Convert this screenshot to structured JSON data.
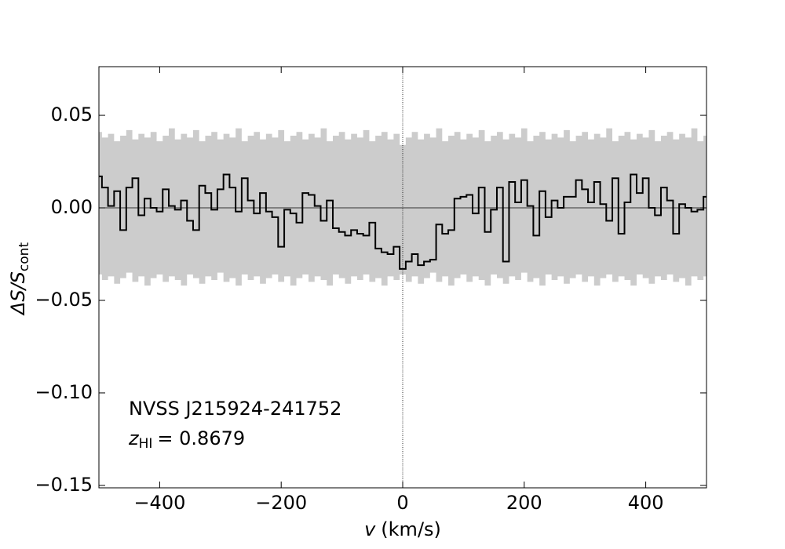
{
  "chart_data": {
    "type": "step",
    "xlabel": {
      "var": "v",
      "unit": "(km/s)"
    },
    "ylabel": {
      "main": "ΔS/S",
      "sub": "cont"
    },
    "annotations": {
      "source": "NVSS J215924-241752",
      "z_var": "z",
      "z_sub": "HI",
      "z_value": "= 0.8679"
    },
    "xlim": [
      -500,
      500
    ],
    "ylim": [
      -0.1513,
      0.0763
    ],
    "xticks": [
      {
        "value": -400,
        "label": "−400"
      },
      {
        "value": -200,
        "label": "−200"
      },
      0,
      200,
      400
    ],
    "yticks": [
      {
        "value": -0.15,
        "label": "−0.15"
      },
      {
        "value": -0.1,
        "label": "−0.10"
      },
      {
        "value": -0.05,
        "label": "−0.05"
      },
      {
        "value": 0,
        "label": "0.00"
      },
      0.05
    ],
    "vline": 0,
    "hline": 0,
    "line_color": "#000000",
    "band_color": "#cccccc",
    "x": [
      -500,
      -490,
      -480,
      -470,
      -460,
      -450,
      -440,
      -430,
      -420,
      -410,
      -400,
      -390,
      -380,
      -370,
      -360,
      -350,
      -340,
      -330,
      -320,
      -310,
      -300,
      -290,
      -280,
      -270,
      -260,
      -250,
      -240,
      -230,
      -220,
      -210,
      -200,
      -190,
      -180,
      -170,
      -160,
      -150,
      -140,
      -130,
      -120,
      -110,
      -100,
      -90,
      -80,
      -70,
      -60,
      -50,
      -40,
      -30,
      -20,
      -10,
      0,
      10,
      20,
      30,
      40,
      50,
      60,
      70,
      80,
      90,
      100,
      110,
      120,
      130,
      140,
      150,
      160,
      170,
      180,
      190,
      200,
      210,
      220,
      230,
      240,
      250,
      260,
      270,
      280,
      290,
      300,
      310,
      320,
      330,
      340,
      350,
      360,
      370,
      380,
      390,
      400,
      410,
      420,
      430,
      440,
      450,
      460,
      470,
      480,
      490,
      500
    ],
    "values": [
      0.017,
      0.011,
      0.001,
      0.009,
      -0.012,
      0.011,
      0.016,
      -0.004,
      0.005,
      0.0,
      -0.002,
      0.01,
      0.001,
      -0.001,
      0.004,
      -0.007,
      -0.012,
      0.012,
      0.008,
      -0.001,
      0.01,
      0.018,
      0.011,
      -0.002,
      0.016,
      0.004,
      -0.003,
      0.008,
      -0.002,
      -0.005,
      -0.021,
      -0.001,
      -0.003,
      -0.008,
      0.008,
      0.007,
      0.001,
      -0.007,
      0.004,
      -0.011,
      -0.013,
      -0.015,
      -0.012,
      -0.014,
      -0.015,
      -0.008,
      -0.022,
      -0.024,
      -0.025,
      -0.021,
      -0.033,
      -0.029,
      -0.025,
      -0.031,
      -0.029,
      -0.028,
      -0.009,
      -0.014,
      -0.012,
      0.005,
      0.006,
      0.007,
      -0.003,
      0.011,
      -0.013,
      -0.001,
      0.011,
      -0.029,
      0.014,
      0.003,
      0.015,
      0.001,
      -0.015,
      0.009,
      -0.005,
      0.004,
      0.0,
      0.006,
      0.006,
      0.015,
      0.01,
      0.003,
      0.014,
      0.002,
      -0.007,
      0.016,
      -0.014,
      0.003,
      0.018,
      0.008,
      0.016,
      0.0,
      -0.004,
      0.011,
      0.004,
      -0.014,
      0.002,
      0.0,
      -0.002,
      -0.001,
      0.006
    ],
    "band_upper": [
      0.041,
      0.038,
      0.04,
      0.036,
      0.039,
      0.042,
      0.037,
      0.04,
      0.038,
      0.041,
      0.036,
      0.039,
      0.043,
      0.037,
      0.04,
      0.038,
      0.042,
      0.036,
      0.039,
      0.041,
      0.037,
      0.04,
      0.038,
      0.043,
      0.036,
      0.039,
      0.041,
      0.037,
      0.04,
      0.038,
      0.042,
      0.036,
      0.039,
      0.041,
      0.037,
      0.04,
      0.038,
      0.043,
      0.036,
      0.039,
      0.041,
      0.037,
      0.04,
      0.038,
      0.042,
      0.036,
      0.039,
      0.041,
      0.037,
      0.04,
      0.034,
      0.038,
      0.041,
      0.037,
      0.04,
      0.038,
      0.043,
      0.036,
      0.039,
      0.041,
      0.037,
      0.04,
      0.038,
      0.042,
      0.036,
      0.039,
      0.041,
      0.037,
      0.04,
      0.038,
      0.043,
      0.036,
      0.039,
      0.041,
      0.037,
      0.04,
      0.038,
      0.042,
      0.036,
      0.039,
      0.041,
      0.037,
      0.04,
      0.038,
      0.043,
      0.036,
      0.039,
      0.041,
      0.037,
      0.04,
      0.038,
      0.042,
      0.036,
      0.039,
      0.041,
      0.037,
      0.04,
      0.038,
      0.043,
      0.036,
      0.039
    ],
    "band_lower": [
      -0.036,
      -0.039,
      -0.037,
      -0.041,
      -0.038,
      -0.035,
      -0.04,
      -0.037,
      -0.042,
      -0.038,
      -0.036,
      -0.04,
      -0.037,
      -0.039,
      -0.042,
      -0.036,
      -0.038,
      -0.041,
      -0.037,
      -0.039,
      -0.035,
      -0.04,
      -0.038,
      -0.042,
      -0.036,
      -0.039,
      -0.037,
      -0.041,
      -0.038,
      -0.036,
      -0.04,
      -0.037,
      -0.042,
      -0.038,
      -0.036,
      -0.04,
      -0.037,
      -0.039,
      -0.042,
      -0.036,
      -0.038,
      -0.041,
      -0.037,
      -0.039,
      -0.036,
      -0.04,
      -0.038,
      -0.042,
      -0.037,
      -0.039,
      -0.036,
      -0.04,
      -0.037,
      -0.041,
      -0.038,
      -0.035,
      -0.04,
      -0.037,
      -0.042,
      -0.038,
      -0.036,
      -0.04,
      -0.037,
      -0.039,
      -0.042,
      -0.036,
      -0.038,
      -0.041,
      -0.037,
      -0.039,
      -0.035,
      -0.04,
      -0.038,
      -0.042,
      -0.036,
      -0.039,
      -0.037,
      -0.041,
      -0.038,
      -0.036,
      -0.04,
      -0.037,
      -0.042,
      -0.038,
      -0.036,
      -0.04,
      -0.037,
      -0.039,
      -0.042,
      -0.036,
      -0.038,
      -0.041,
      -0.037,
      -0.039,
      -0.036,
      -0.04,
      -0.038,
      -0.042,
      -0.037,
      -0.039,
      -0.037
    ]
  }
}
